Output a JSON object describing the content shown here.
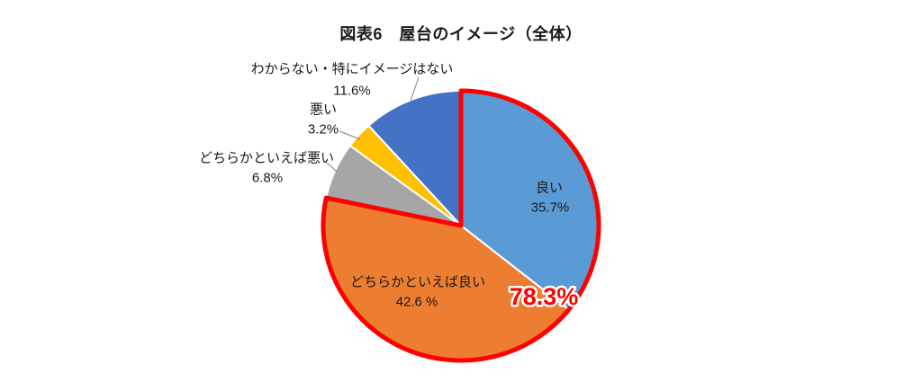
{
  "chart_data": {
    "type": "pie",
    "title": "図表6　屋台のイメージ（全体）",
    "direction": "clockwise",
    "start_angle_deg": 0,
    "unit": "%",
    "legend": "none",
    "slices": [
      {
        "label": "良い",
        "value": 35.7,
        "value_text": "35.7%",
        "color": "#5B9BD5",
        "label_position": "inside"
      },
      {
        "label": "どちらかといえば良い",
        "value": 42.6,
        "value_text": "42.6 %",
        "color": "#ED7D31",
        "label_position": "inside"
      },
      {
        "label": "どちらかといえば悪い",
        "value": 6.8,
        "value_text": "6.8%",
        "color": "#A6A6A6",
        "label_position": "outside"
      },
      {
        "label": "悪い",
        "value": 3.2,
        "value_text": "3.2%",
        "color": "#FFC000",
        "label_position": "outside"
      },
      {
        "label": "わからない・特にイメージはない",
        "value": 11.6,
        "value_text": "11.6%",
        "color": "#4472C4",
        "label_position": "outside"
      }
    ],
    "highlight": {
      "value": 78.3,
      "label_text": "78.3%",
      "covers": [
        "良い",
        "どちらかといえば良い"
      ],
      "outline_color": "#FF0000",
      "text_color": "#FF0000",
      "text_outline_color": "#FFFFFF"
    },
    "style": {
      "slice_border_color": "#FFFFFF",
      "leader_line_color": "#808080",
      "label_text_color": "#1A1A1A"
    }
  }
}
